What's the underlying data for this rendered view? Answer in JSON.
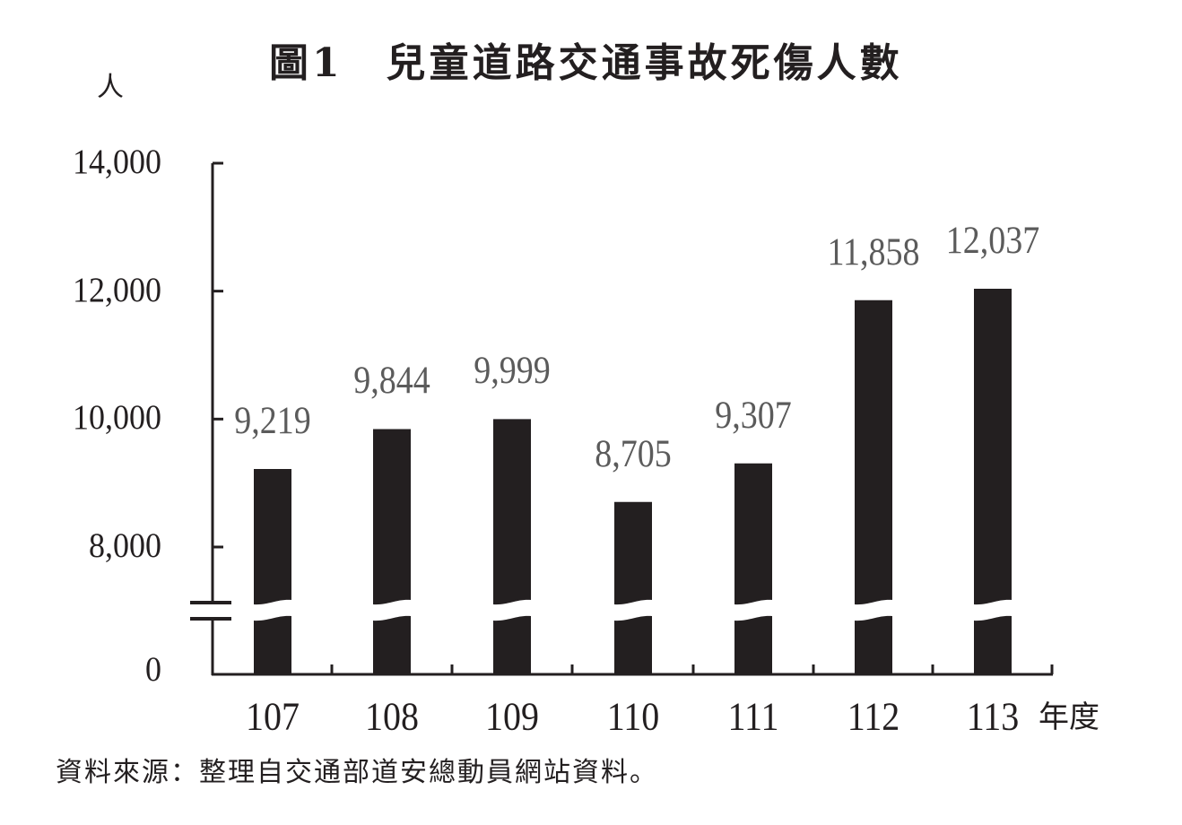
{
  "title": "圖1　兒童道路交通事故死傷人數",
  "y_unit": "人",
  "x_unit": "年度",
  "source": "資料來源：整理自交通部道安總動員網站資料。",
  "colors": {
    "bar": "#231f20",
    "axis": "#231f20",
    "value_label": "#5b5b5b",
    "background": "#ffffff"
  },
  "y_ticks": [
    {
      "label": "14,000",
      "value": 14000
    },
    {
      "label": "12,000",
      "value": 12000
    },
    {
      "label": "10,000",
      "value": 10000
    },
    {
      "label": "8,000",
      "value": 8000
    },
    {
      "label": "0",
      "value": 0
    }
  ],
  "bars": [
    {
      "year": "107",
      "value": 9219,
      "label": "9,219"
    },
    {
      "year": "108",
      "value": 9844,
      "label": "9,844"
    },
    {
      "year": "109",
      "value": 9999,
      "label": "9,999"
    },
    {
      "year": "110",
      "value": 8705,
      "label": "8,705"
    },
    {
      "year": "111",
      "value": 9307,
      "label": "9,307"
    },
    {
      "year": "112",
      "value": 11858,
      "label": "11,858"
    },
    {
      "year": "113",
      "value": 12037,
      "label": "12,037"
    }
  ],
  "chart_data": {
    "type": "bar",
    "title": "圖1　兒童道路交通事故死傷人數",
    "xlabel": "年度",
    "ylabel": "人",
    "categories": [
      "107",
      "108",
      "109",
      "110",
      "111",
      "112",
      "113"
    ],
    "values": [
      9219,
      9844,
      9999,
      8705,
      9307,
      11858,
      12037
    ],
    "data_labels": [
      "9,219",
      "9,844",
      "9,999",
      "8,705",
      "9,307",
      "11,858",
      "12,037"
    ],
    "y_tick_labels": [
      "0",
      "8,000",
      "10,000",
      "12,000",
      "14,000"
    ],
    "ylim": [
      0,
      14000
    ],
    "axis_break": {
      "between": [
        0,
        8000
      ]
    },
    "grid": false,
    "legend": null,
    "bar_color": "#231f20",
    "source_note": "資料來源：整理自交通部道安總動員網站資料。"
  }
}
